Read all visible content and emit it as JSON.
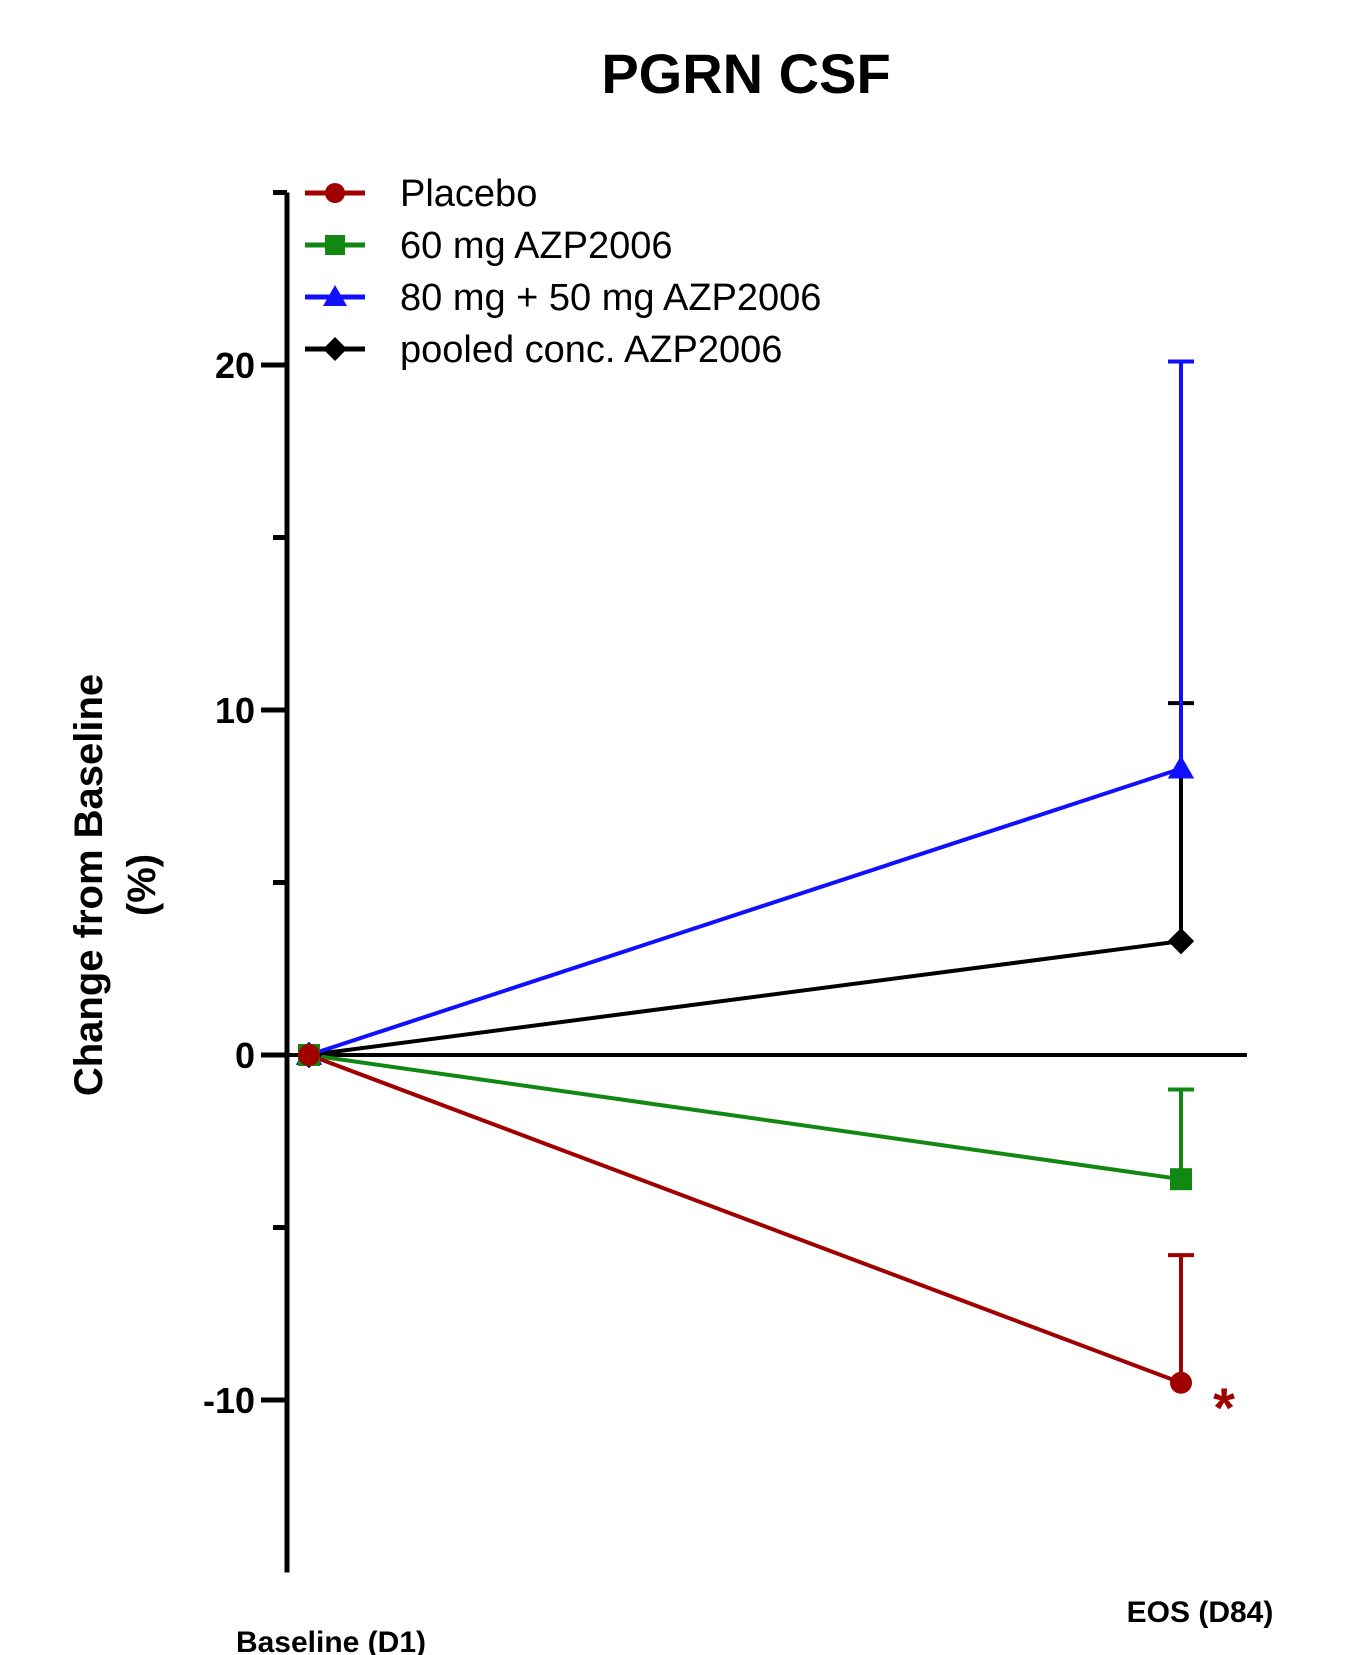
{
  "chart_data": {
    "type": "line",
    "title": "PGRN CSF",
    "ylabel_line1": "Change from Baseline",
    "ylabel_line2": "(%)",
    "xlabel": "",
    "categories": [
      "Baseline (D1)",
      "EOS (D84)"
    ],
    "ylim": [
      -15,
      25
    ],
    "y_major_ticks": [
      -10,
      0,
      10,
      20
    ],
    "y_minor_ticks": [
      -5,
      5,
      15
    ],
    "y_tick_labels": [
      "-10",
      "0",
      "10",
      "20"
    ],
    "grid": false,
    "legend_position": "top-left",
    "series": [
      {
        "name": "Placebo",
        "color": "#a00000",
        "marker": "circle",
        "values": [
          0,
          -9.5
        ],
        "error_upper": [
          null,
          -5.8
        ],
        "annotation": "*"
      },
      {
        "name": "60 mg AZP2006",
        "color": "#118811",
        "marker": "square",
        "values": [
          0,
          -3.6
        ],
        "error_upper": [
          null,
          -1.0
        ]
      },
      {
        "name": "80 mg + 50 mg AZP2006",
        "color": "#1010ff",
        "marker": "triangle",
        "values": [
          0,
          8.3
        ],
        "error_upper": [
          null,
          20.1
        ]
      },
      {
        "name": "pooled conc. AZP2006",
        "color": "#000000",
        "marker": "diamond",
        "values": [
          0,
          3.3
        ],
        "error_upper": [
          null,
          10.2
        ]
      }
    ]
  }
}
